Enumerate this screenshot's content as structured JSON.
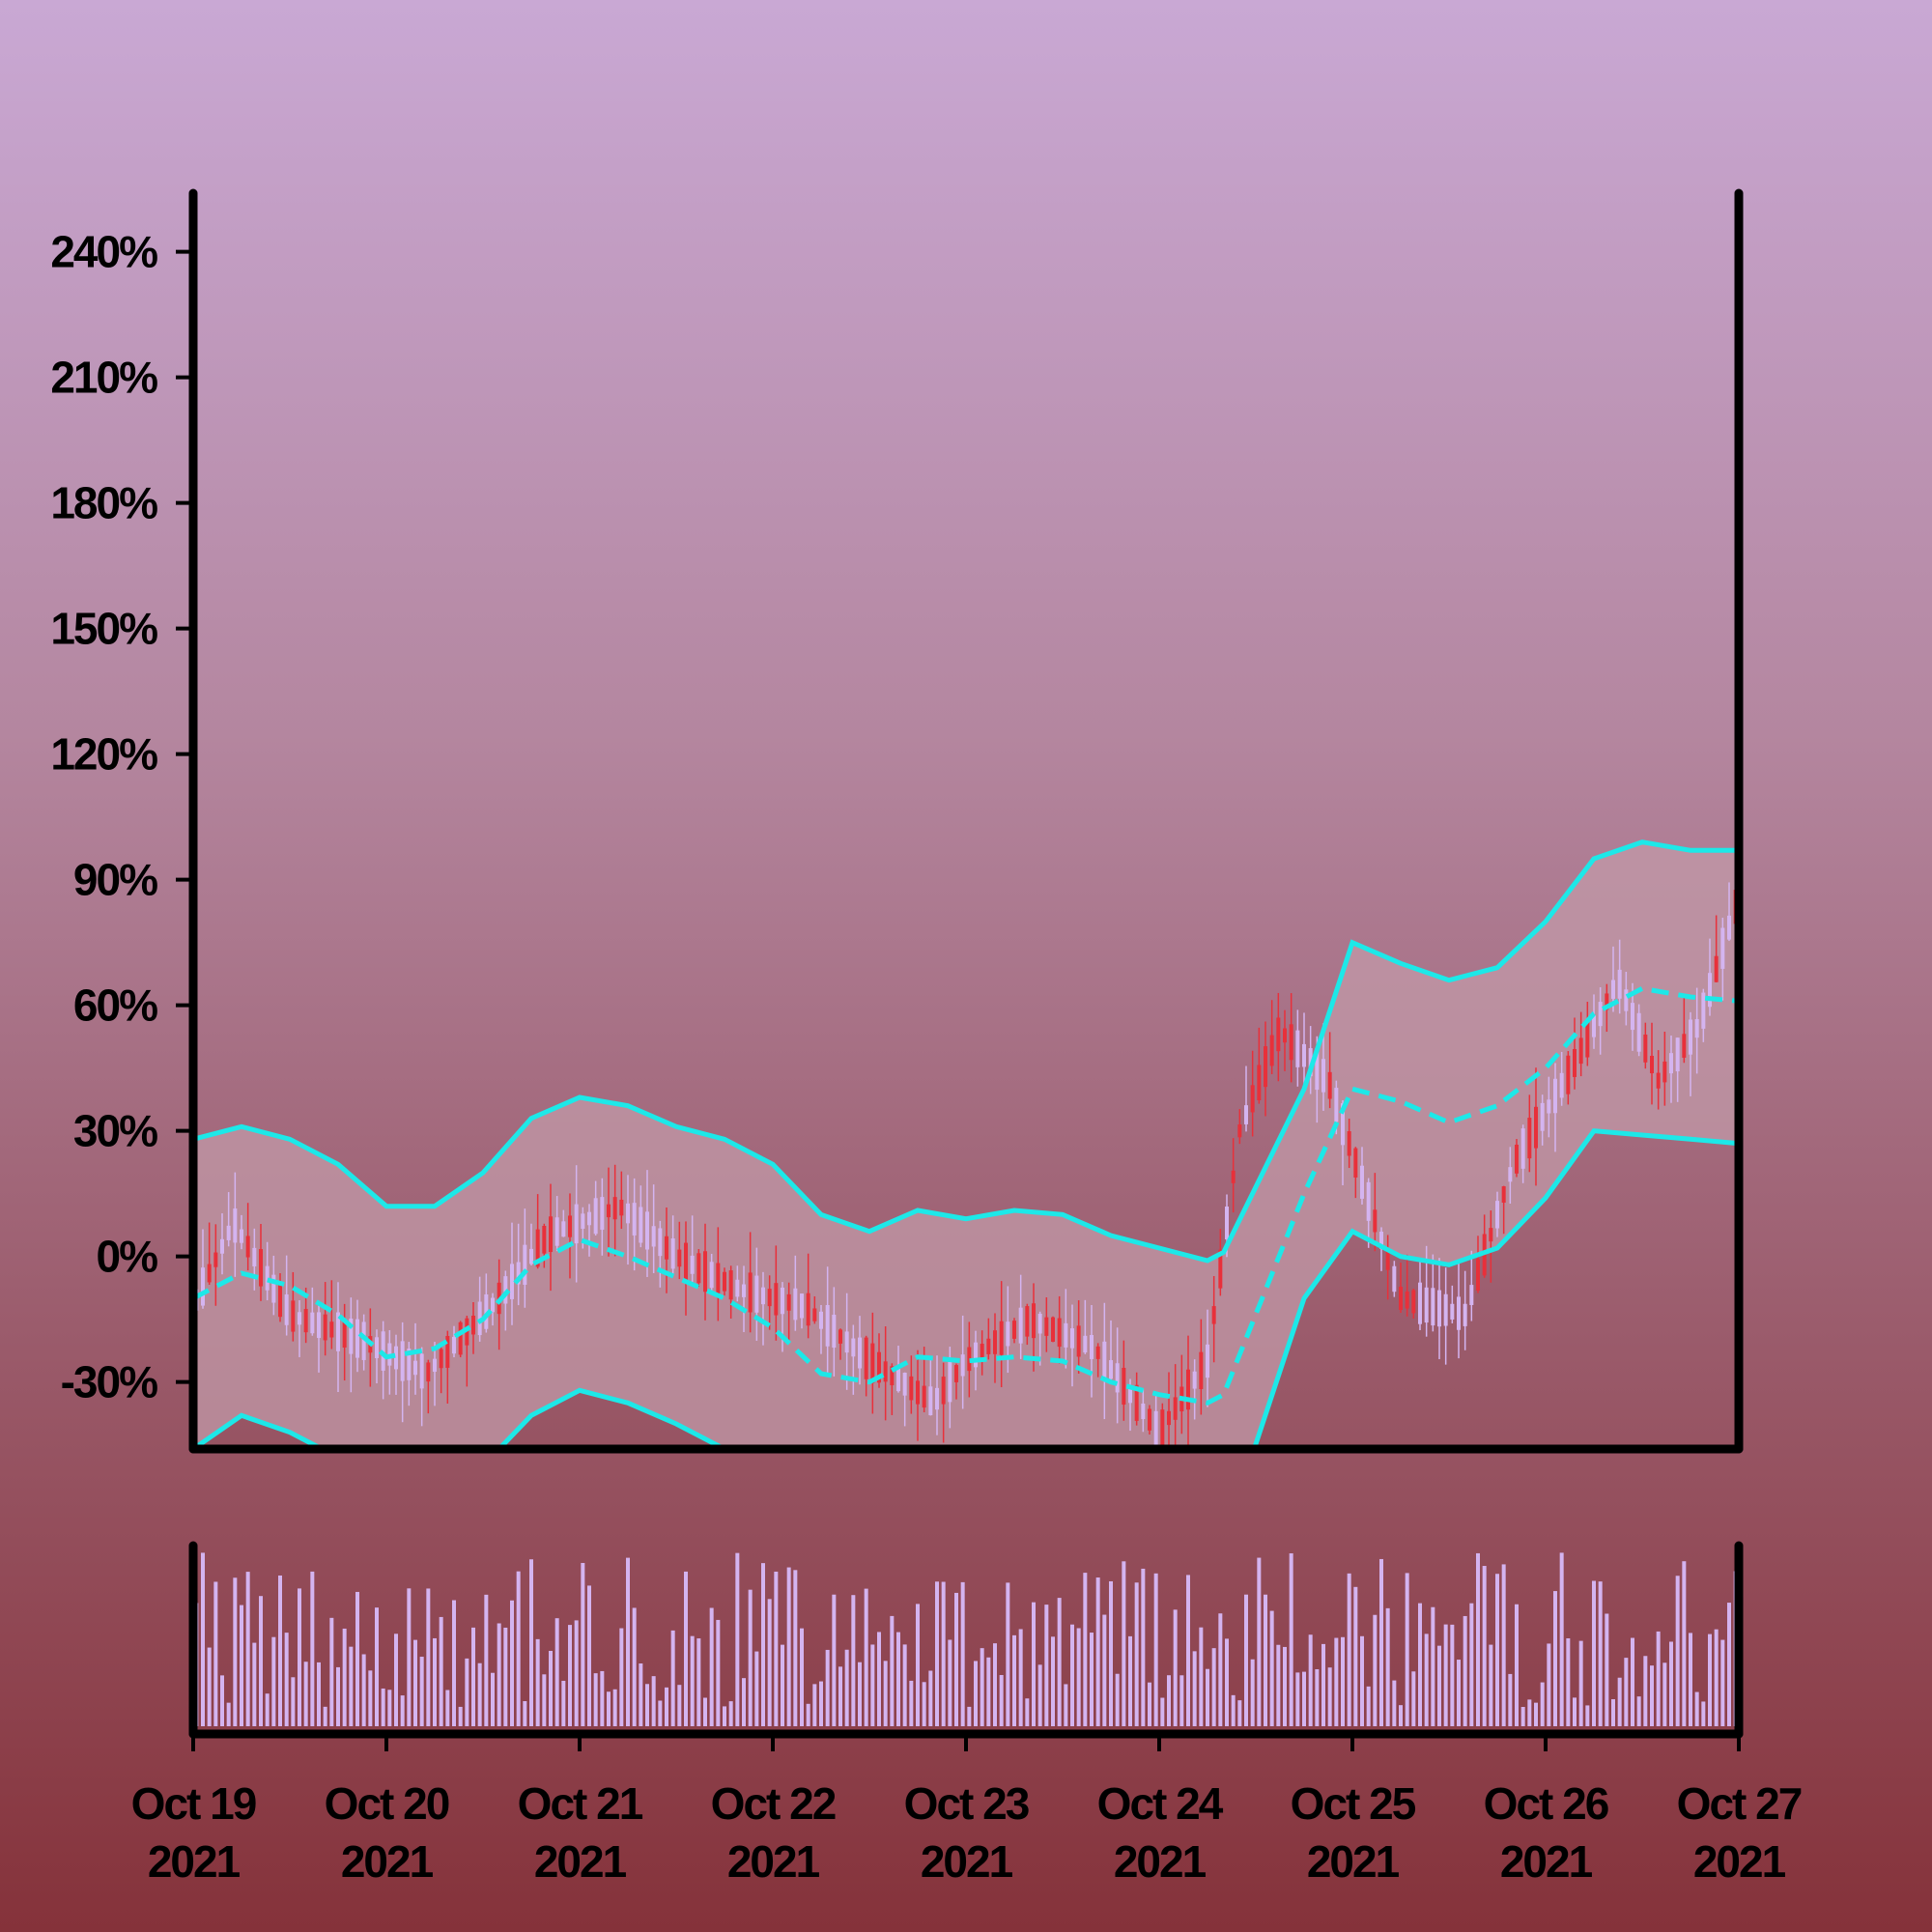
{
  "chart_data": [
    {
      "type": "candlestick",
      "title": "",
      "xlabel": "",
      "ylabel": "",
      "x_ticks": [
        {
          "date": "2021-10-19",
          "line1": "Oct 19",
          "line2": "2021"
        },
        {
          "date": "2021-10-20",
          "line1": "Oct 20",
          "line2": "2021"
        },
        {
          "date": "2021-10-21",
          "line1": "Oct 21",
          "line2": "2021"
        },
        {
          "date": "2021-10-22",
          "line1": "Oct 22",
          "line2": "2021"
        },
        {
          "date": "2021-10-23",
          "line1": "Oct 23",
          "line2": "2021"
        },
        {
          "date": "2021-10-24",
          "line1": "Oct 24",
          "line2": "2021"
        },
        {
          "date": "2021-10-25",
          "line1": "Oct 25",
          "line2": "2021"
        },
        {
          "date": "2021-10-26",
          "line1": "Oct 26",
          "line2": "2021"
        },
        {
          "date": "2021-10-27",
          "line1": "Oct 27",
          "line2": "2021"
        }
      ],
      "xlim": [
        "2021-10-19",
        "2021-10-27"
      ],
      "y_ticks": [
        {
          "value": -30,
          "label": "-30%"
        },
        {
          "value": 0,
          "label": "0%"
        },
        {
          "value": 30,
          "label": "30%"
        },
        {
          "value": 60,
          "label": "60%"
        },
        {
          "value": 90,
          "label": "90%"
        },
        {
          "value": 120,
          "label": "120%"
        },
        {
          "value": 150,
          "label": "150%"
        },
        {
          "value": 180,
          "label": "180%"
        },
        {
          "value": 210,
          "label": "210%"
        },
        {
          "value": 240,
          "label": "240%"
        }
      ],
      "ylim": [
        -46,
        254
      ],
      "grid": false,
      "bollinger": {
        "x": [
          "2021-10-19",
          "2021-10-19T06:00",
          "2021-10-19T12:00",
          "2021-10-19T18:00",
          "2021-10-20",
          "2021-10-20T06:00",
          "2021-10-20T12:00",
          "2021-10-20T18:00",
          "2021-10-21",
          "2021-10-21T06:00",
          "2021-10-21T12:00",
          "2021-10-21T18:00",
          "2021-10-22",
          "2021-10-22T06:00",
          "2021-10-22T12:00",
          "2021-10-22T18:00",
          "2021-10-23",
          "2021-10-23T06:00",
          "2021-10-23T12:00",
          "2021-10-23T18:00",
          "2021-10-24",
          "2021-10-24T06:00",
          "2021-10-24T08:00",
          "2021-10-24T18:00",
          "2021-10-25",
          "2021-10-25T06:00",
          "2021-10-25T12:00",
          "2021-10-25T18:00",
          "2021-10-26",
          "2021-10-26T06:00",
          "2021-10-26T12:00",
          "2021-10-26T18:00",
          "2021-10-27"
        ],
        "upper": [
          28,
          31,
          28,
          22,
          12,
          12,
          20,
          33,
          38,
          36,
          31,
          28,
          22,
          10,
          6,
          11,
          9,
          11,
          10,
          5,
          2,
          -1,
          1,
          40,
          75,
          70,
          66,
          69,
          80,
          95,
          99,
          97,
          97
        ],
        "middle": [
          -10,
          -4,
          -7,
          -14,
          -24,
          -22,
          -15,
          -2,
          4,
          0,
          -5,
          -10,
          -17,
          -28,
          -30,
          -24,
          -25,
          -24,
          -25,
          -30,
          -33,
          -35,
          -33,
          15,
          40,
          37,
          32,
          36,
          45,
          58,
          64,
          62,
          61
        ],
        "lower": [
          -46,
          -38,
          -42,
          -48,
          -58,
          -56,
          -50,
          -38,
          -32,
          -35,
          -40,
          -46,
          -54,
          -66,
          -68,
          -58,
          -60,
          -58,
          -60,
          -66,
          -68,
          -70,
          -68,
          -10,
          6,
          0,
          -2,
          2,
          14,
          30,
          29,
          28,
          27
        ]
      },
      "candles": {
        "count": 240,
        "anchors_x": [
          "2021-10-19",
          "2021-10-19T05:00",
          "2021-10-19T12:00",
          "2021-10-19T21:00",
          "2021-10-20T05:00",
          "2021-10-20T14:00",
          "2021-10-20T20:00",
          "2021-10-21T05:00",
          "2021-10-21T12:00",
          "2021-10-21T20:00",
          "2021-10-22T04:00",
          "2021-10-22T12:00",
          "2021-10-22T20:00",
          "2021-10-23",
          "2021-10-23T08:00",
          "2021-10-23T16:00",
          "2021-10-24",
          "2021-10-24T06:00",
          "2021-10-24T10:00",
          "2021-10-24T15:00",
          "2021-10-24T21:00",
          "2021-10-25T06:00",
          "2021-10-25T14:00",
          "2021-10-25T20:00",
          "2021-10-26T03:00",
          "2021-10-26T09:00",
          "2021-10-26T14:00",
          "2021-10-26T19:00",
          "2021-10-27"
        ],
        "anchors_y": [
          -12,
          8,
          -14,
          -20,
          -28,
          -10,
          5,
          12,
          0,
          -8,
          -12,
          -25,
          -35,
          -25,
          -15,
          -22,
          -42,
          -25,
          30,
          54,
          42,
          -10,
          -14,
          22,
          44,
          66,
          42,
          55,
          86
        ],
        "up_color": "#d4b4f0",
        "down_color": "#e8303a"
      },
      "volume": {
        "color": "#d4b4f0"
      },
      "colors": {
        "bands": "#1de8e8",
        "band_fill": "#c29aa8"
      }
    }
  ]
}
